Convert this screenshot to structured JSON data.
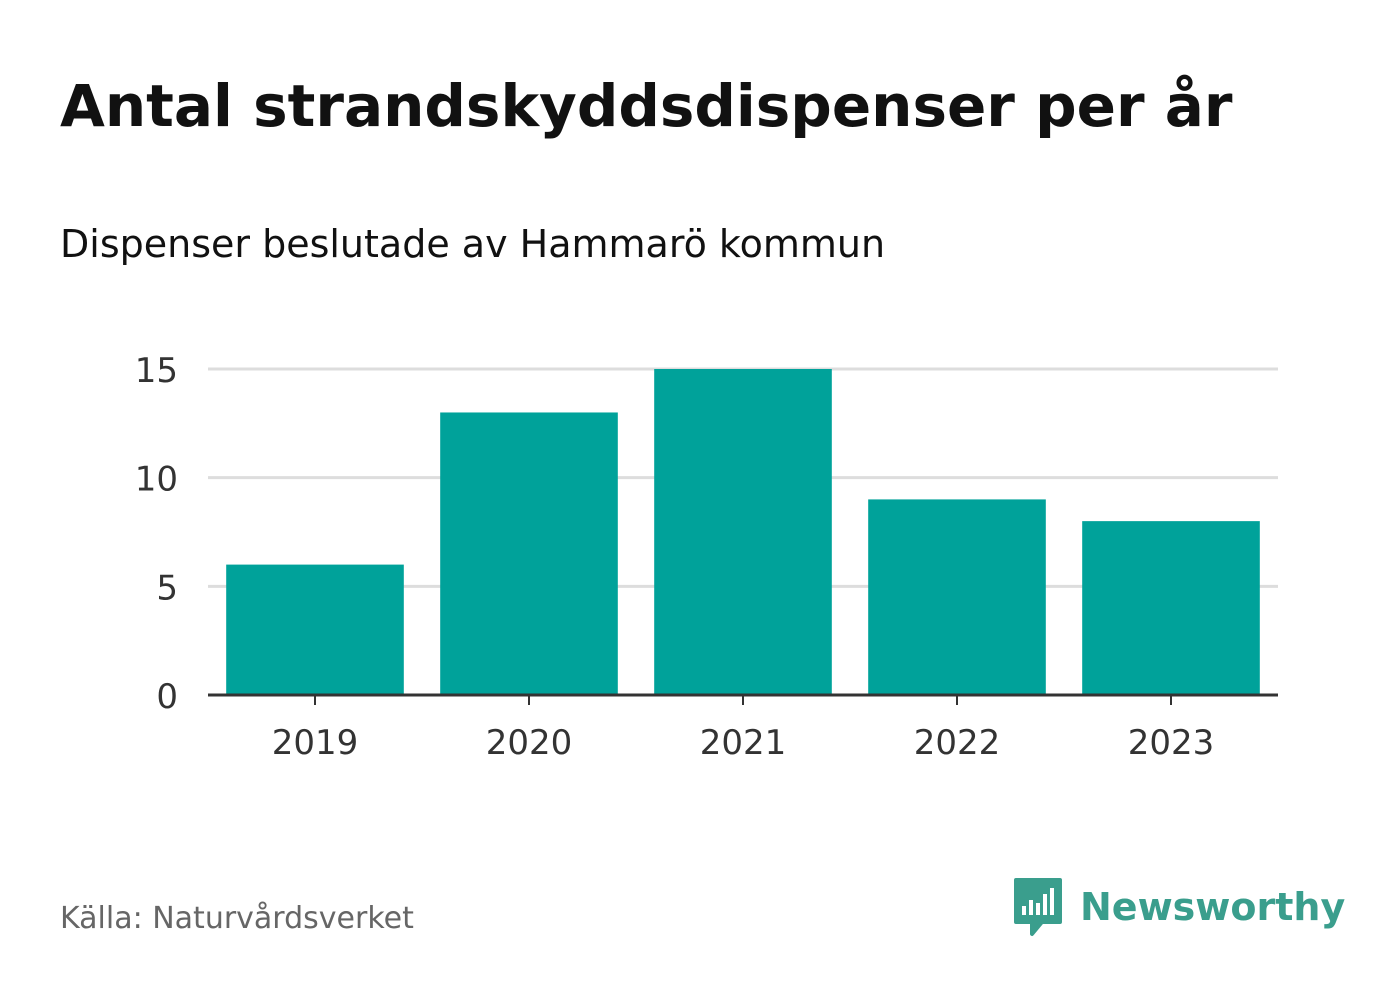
{
  "title": "Antal strandskyddsdispenser per år",
  "subtitle": "Dispenser beslutade av Hammarö kommun",
  "source": "Källa: Naturvårdsverket",
  "brand": {
    "name": "Newsworthy",
    "icon": "newsworthy-logo-icon",
    "color": "#3a9e8d"
  },
  "colors": {
    "bar": "#00a29a",
    "grid": "#dddddd",
    "axis": "#333333",
    "tick_text": "#333333"
  },
  "chart_data": {
    "type": "bar",
    "title": "Antal strandskyddsdispenser per år",
    "subtitle": "Dispenser beslutade av Hammarö kommun",
    "xlabel": "",
    "ylabel": "",
    "categories": [
      "2019",
      "2020",
      "2021",
      "2022",
      "2023"
    ],
    "values": [
      6,
      13,
      15,
      9,
      8
    ],
    "ylim": [
      0,
      15
    ],
    "yticks": [
      "0",
      "5",
      "10",
      "15"
    ],
    "grid": true,
    "legend": "none"
  }
}
